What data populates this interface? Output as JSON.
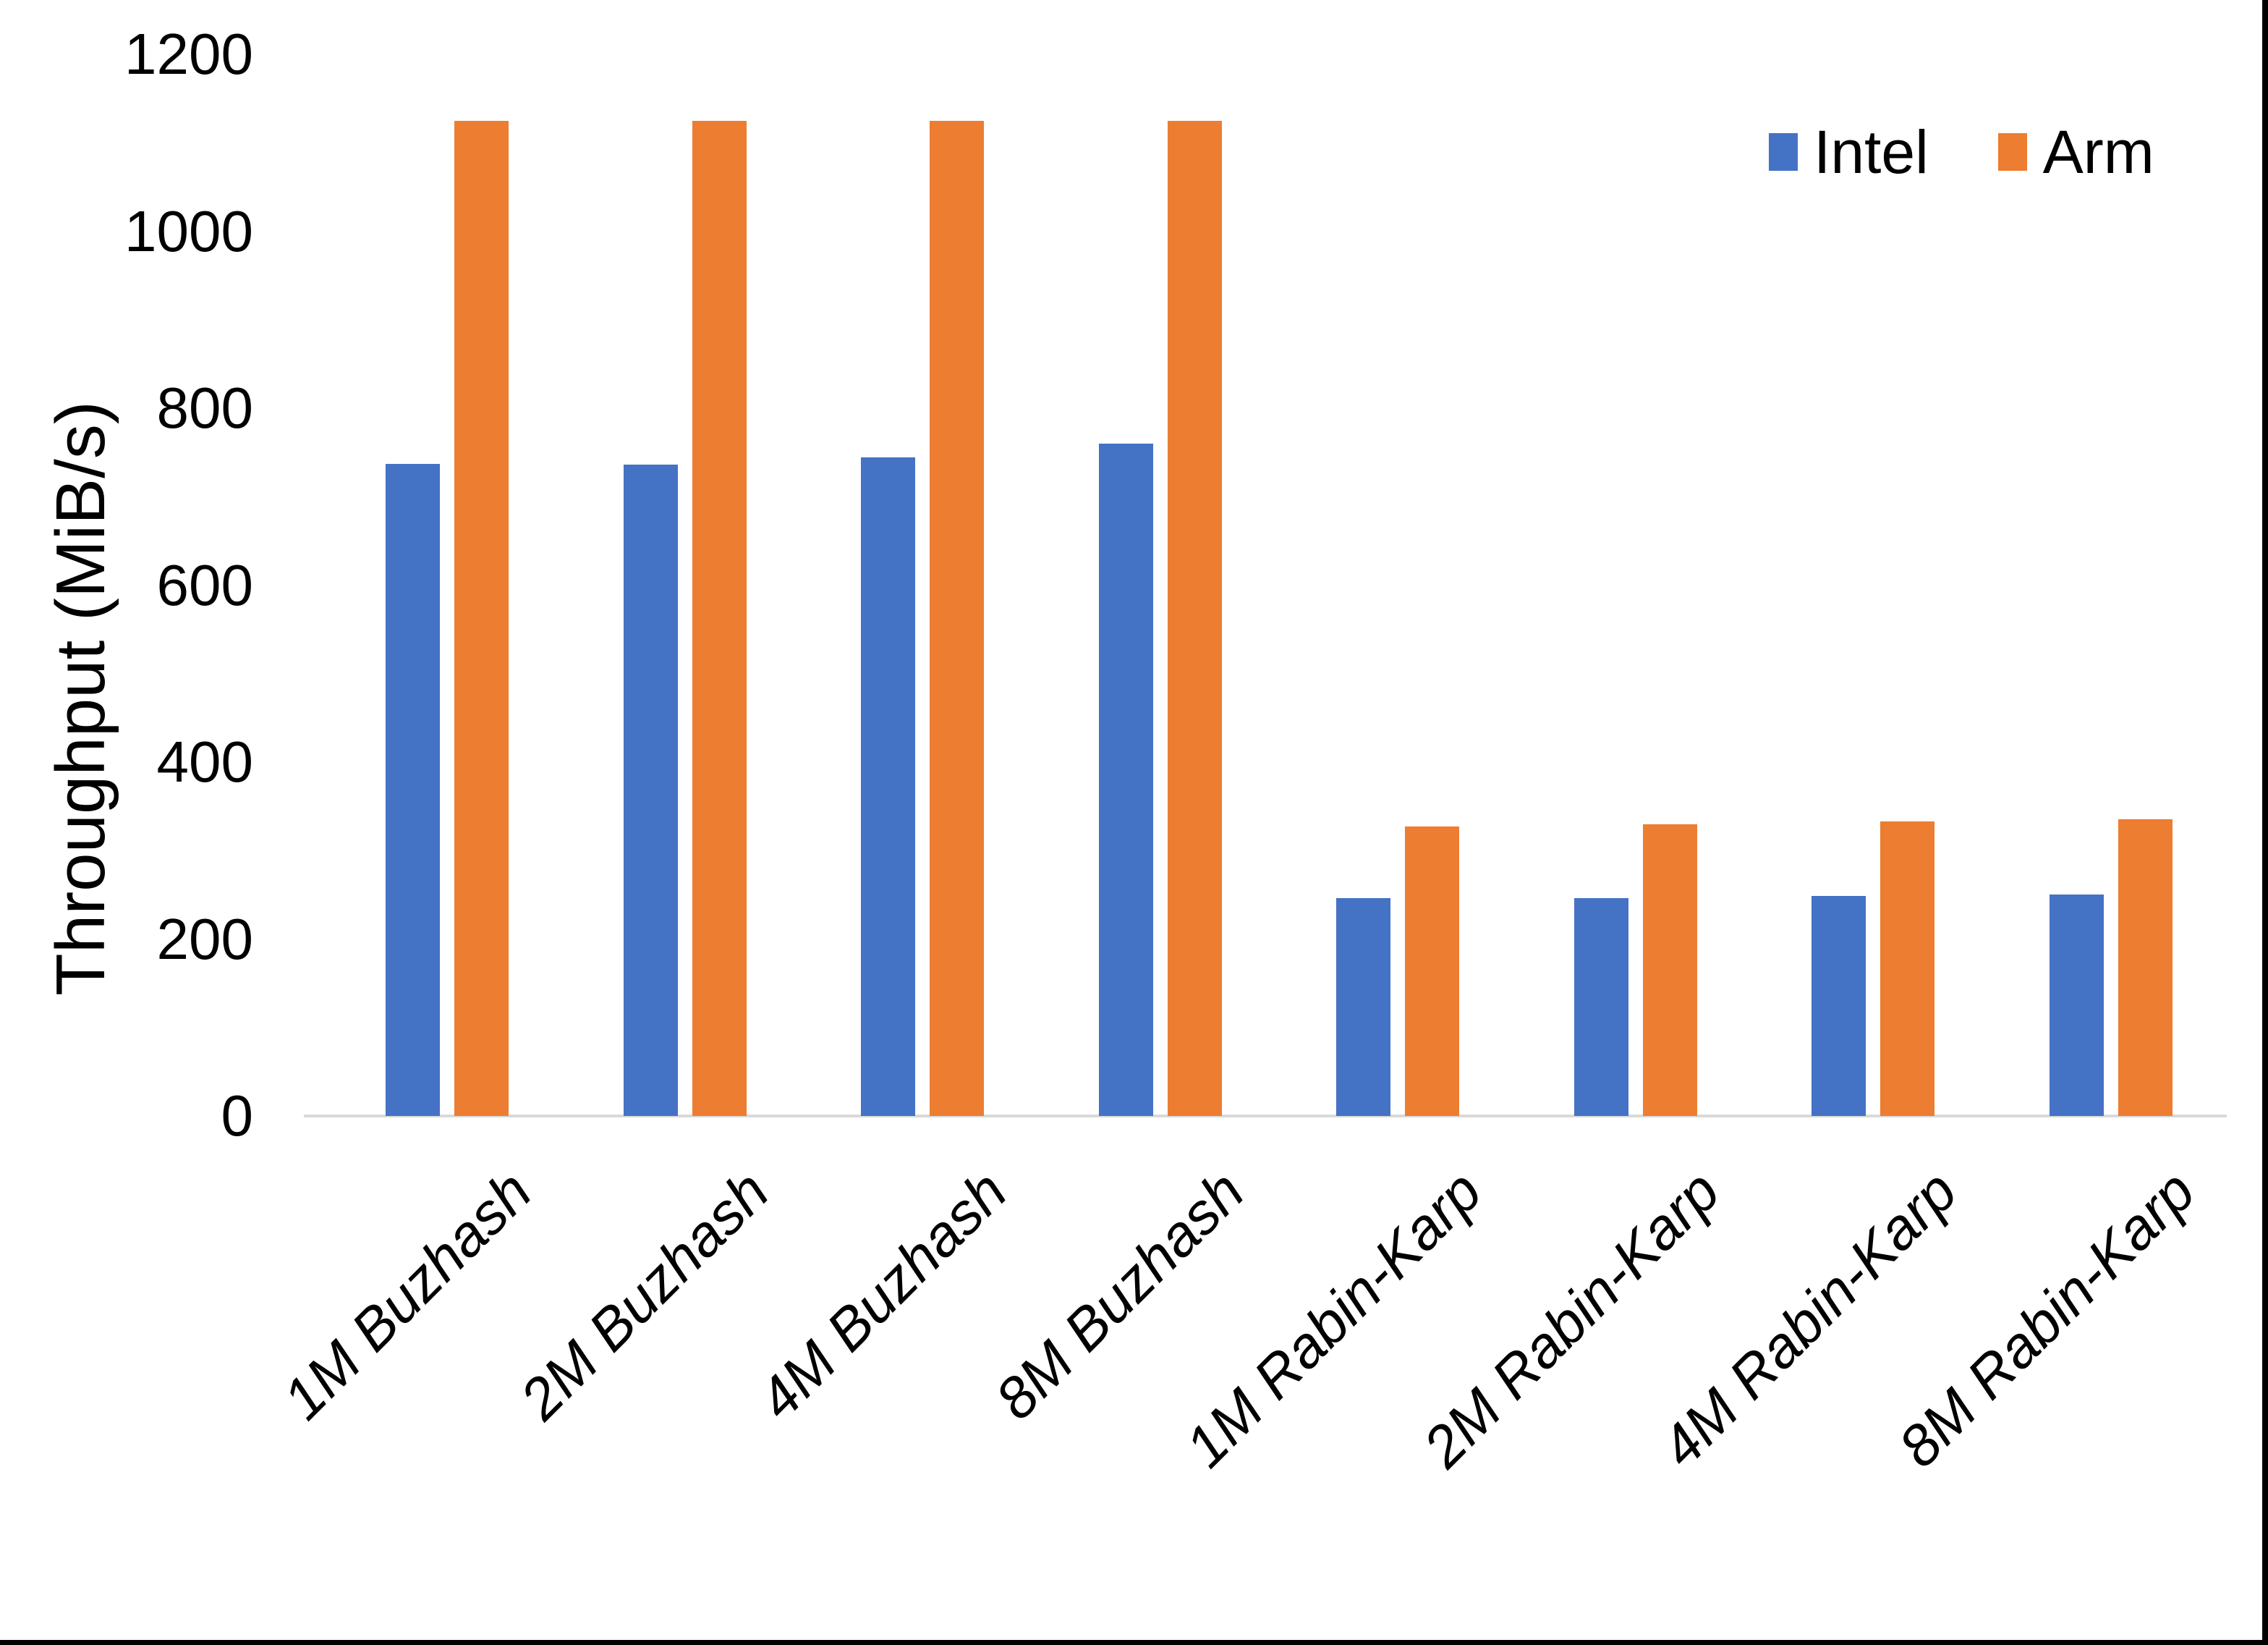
{
  "chart_data": {
    "type": "bar",
    "title": "",
    "xlabel": "",
    "ylabel": "Throughput (MiB/s)",
    "categories": [
      "1M Buzhash",
      "2M Buzhash",
      "4M Buzhash",
      "8M Buzhash",
      "1M Rabin-Karp",
      "2M Rabin-Karp",
      "4M Rabin-Karp",
      "8M Rabin-Karp"
    ],
    "series": [
      {
        "name": "Intel",
        "color": "#4472C4",
        "values": [
          737,
          736,
          744,
          760,
          246,
          246,
          249,
          250
        ]
      },
      {
        "name": "Arm",
        "color": "#ED7D31",
        "values": [
          1125,
          1125,
          1125,
          1125,
          327,
          330,
          333,
          335
        ]
      }
    ],
    "ylim": [
      0,
      1200
    ],
    "yticks": [
      0,
      200,
      400,
      600,
      800,
      1000,
      1200
    ],
    "grid": false,
    "legend_position": "top-right",
    "axis_line_color": "#d9d9d9"
  }
}
